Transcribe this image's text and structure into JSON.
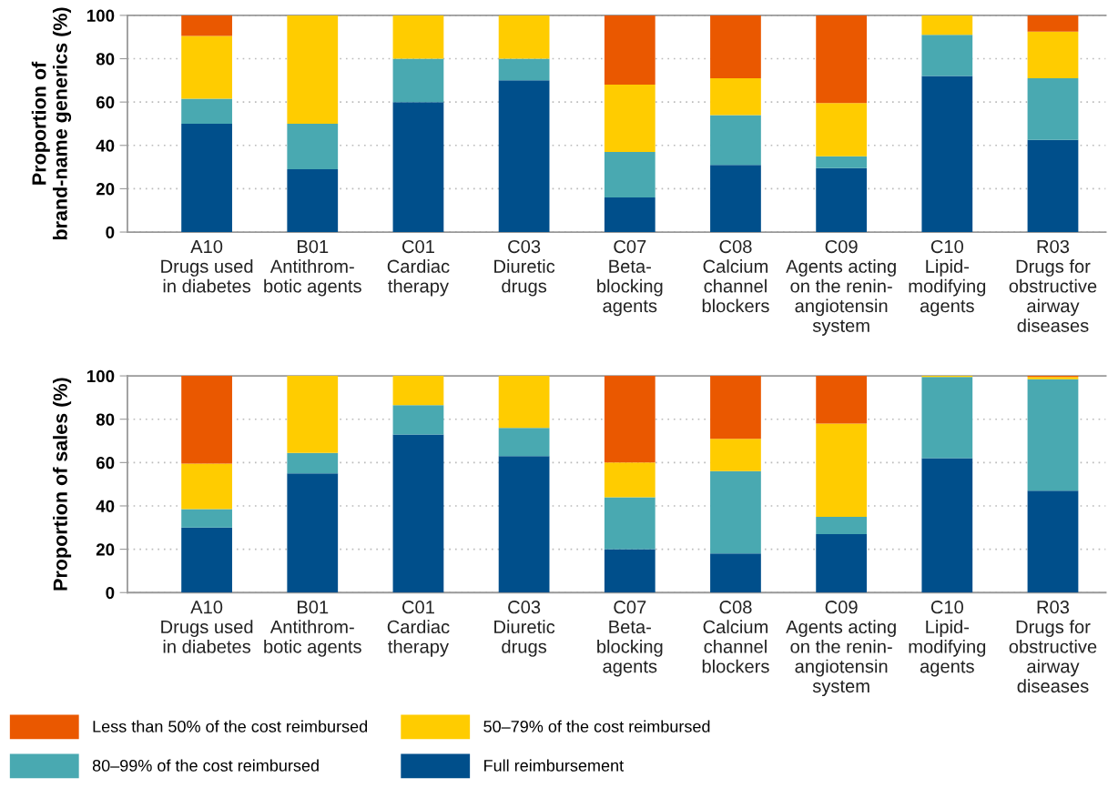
{
  "chart_data": [
    {
      "type": "bar",
      "stacked": true,
      "ylabel": "Proportion of\nbrand-name generics (%)",
      "categories": [
        "A10\nDrugs used\nin diabetes",
        "B01\nAntithrom-\nbotic agents",
        "C01\nCardiac\ntherapy",
        "C03\nDiuretic\ndrugs",
        "C07\nBeta-\nblocking\nagents",
        "C08\nCalcium\nchannel\nblockers",
        "C09\nAgents acting\non the renin-\nangiotensin\nsystem",
        "C10\nLipid-\nmodifying\nagents",
        "R03\nDrugs for\nobstructive\nairway\ndiseases"
      ],
      "series": [
        {
          "color": "#004f8b",
          "values": [
            50,
            29,
            60,
            70,
            16,
            31,
            29.5,
            72,
            42.5
          ]
        },
        {
          "color": "#49a9b1",
          "values": [
            11.5,
            21,
            20,
            10,
            21,
            23,
            5.5,
            19,
            28.5
          ]
        },
        {
          "color": "#ffcc00",
          "values": [
            29,
            50,
            20,
            20,
            31,
            17,
            24.5,
            9,
            21.5
          ]
        },
        {
          "color": "#ea5800",
          "values": [
            9.5,
            0,
            0,
            0,
            32,
            29,
            40.5,
            0,
            7.5
          ]
        }
      ],
      "ylim": [
        0,
        100
      ],
      "yticks": [
        0,
        20,
        40,
        60,
        80,
        100
      ],
      "grid": "y",
      "legend": false
    },
    {
      "type": "bar",
      "stacked": true,
      "ylabel": "Proportion of sales (%)",
      "categories": [
        "A10\nDrugs used\nin diabetes",
        "B01\nAntithrom-\nbotic agents",
        "C01\nCardiac\ntherapy",
        "C03\nDiuretic\ndrugs",
        "C07\nBeta-\nblocking\nagents",
        "C08\nCalcium\nchannel\nblockers",
        "C09\nAgents acting\non the renin-\nangiotensin\nsystem",
        "C10\nLipid-\nmodifying\nagents",
        "R03\nDrugs for\nobstructive\nairway\ndiseases"
      ],
      "series": [
        {
          "name": "Full reimbursement",
          "color": "#004f8b",
          "values": [
            30,
            55,
            73,
            63,
            20,
            18,
            27,
            62,
            47
          ]
        },
        {
          "name": "80–99% of the cost reimbursed",
          "color": "#49a9b1",
          "values": [
            8.5,
            9.5,
            13.5,
            13,
            24,
            38,
            8,
            37.5,
            51.5
          ]
        },
        {
          "name": "50–79% of the cost reimbursed",
          "color": "#ffcc00",
          "values": [
            21,
            35.5,
            13.5,
            24,
            16,
            15,
            43,
            0.5,
            1
          ]
        },
        {
          "name": "Less than 50% of the cost reimbursed",
          "color": "#ea5800",
          "values": [
            40.5,
            0,
            0,
            0,
            40,
            29,
            22,
            0,
            0.5
          ]
        }
      ],
      "ylim": [
        0,
        100
      ],
      "yticks": [
        0,
        20,
        40,
        60,
        80,
        100
      ],
      "grid": "y",
      "legend": "bottom"
    }
  ]
}
